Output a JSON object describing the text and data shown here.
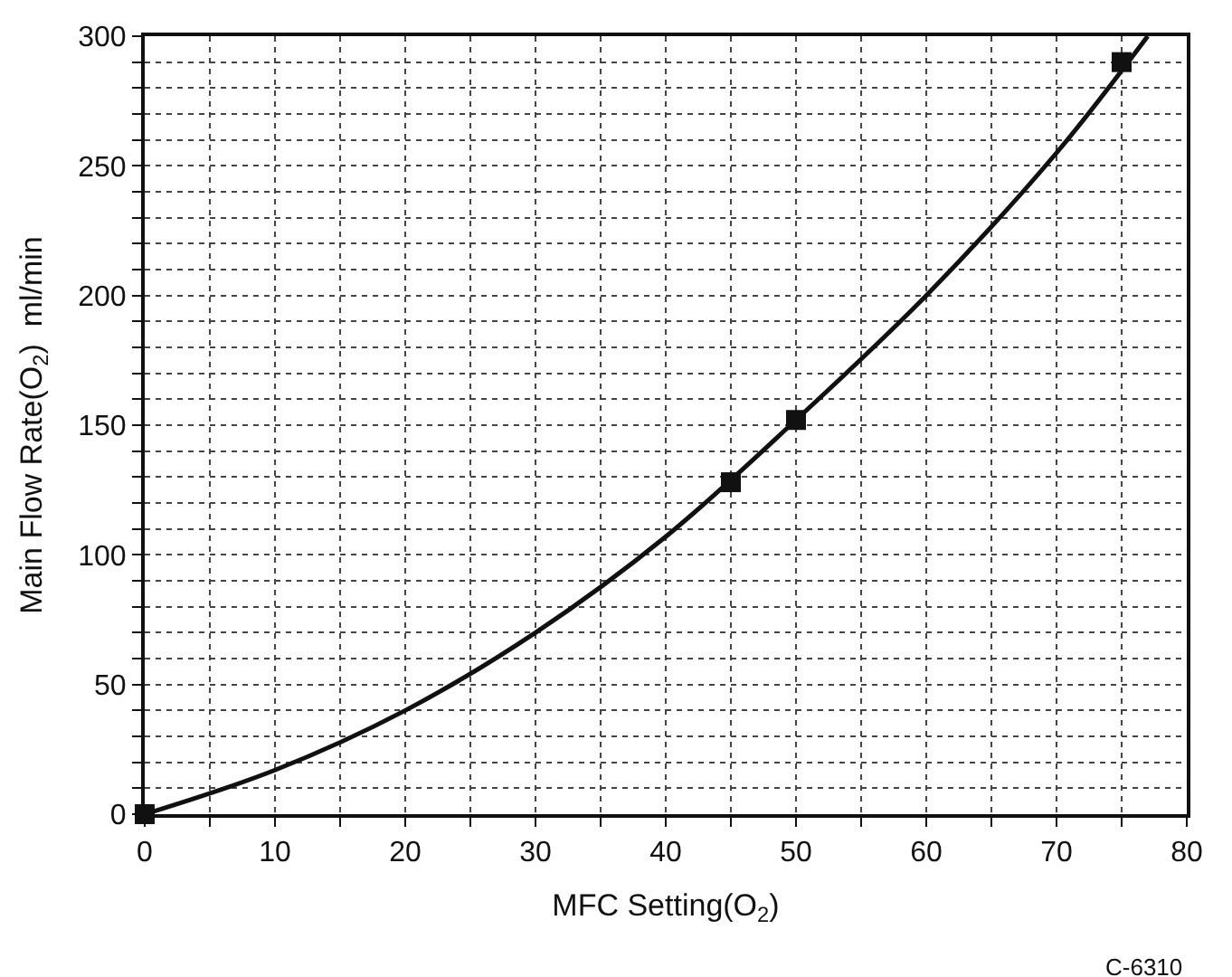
{
  "chart_data": {
    "type": "scatter",
    "xlabel": "MFC Setting(O$_{2}$)",
    "ylabel": "Main Flow Rate(O$_{2}$)  ml/min",
    "xlim": [
      0,
      80
    ],
    "ylim": [
      0,
      300
    ],
    "xticks": [
      0,
      {
        "value": 5,
        "label": null
      },
      10,
      {
        "value": 15,
        "label": null
      },
      20,
      {
        "value": 25,
        "label": null
      },
      30,
      {
        "value": 35,
        "label": null
      },
      40,
      {
        "value": 45,
        "label": null
      },
      50,
      {
        "value": 55,
        "label": null
      },
      60,
      {
        "value": 65,
        "label": null
      },
      70,
      {
        "value": 75,
        "label": null
      },
      80
    ],
    "yticks": [
      0,
      {
        "value": 10,
        "label": null
      },
      {
        "value": 20,
        "label": null
      },
      {
        "value": 30,
        "label": null
      },
      {
        "value": 40,
        "label": null
      },
      50,
      {
        "value": 60,
        "label": null
      },
      {
        "value": 70,
        "label": null
      },
      {
        "value": 80,
        "label": null
      },
      {
        "value": 90,
        "label": null
      },
      100,
      {
        "value": 110,
        "label": null
      },
      {
        "value": 120,
        "label": null
      },
      {
        "value": 130,
        "label": null
      },
      {
        "value": 140,
        "label": null
      },
      150,
      {
        "value": 160,
        "label": null
      },
      {
        "value": 170,
        "label": null
      },
      {
        "value": 180,
        "label": null
      },
      {
        "value": 190,
        "label": null
      },
      200,
      {
        "value": 210,
        "label": null
      },
      {
        "value": 220,
        "label": null
      },
      {
        "value": 230,
        "label": null
      },
      {
        "value": 240,
        "label": null
      },
      250,
      {
        "value": 260,
        "label": null
      },
      {
        "value": 270,
        "label": null
      },
      {
        "value": 280,
        "label": null
      },
      {
        "value": 290,
        "label": null
      },
      300
    ],
    "grid": true,
    "series": [
      {
        "type": "line",
        "color": "#111111",
        "marker": "none",
        "x": [
          0,
          10,
          20,
          30,
          40,
          50,
          60,
          70,
          77
        ],
        "values": [
          0,
          17,
          40,
          70,
          107,
          152,
          200,
          255,
          300
        ]
      },
      {
        "color": "#111111",
        "marker": "square",
        "x": [
          0,
          45,
          50,
          75
        ],
        "values": [
          0,
          128,
          152,
          290
        ]
      }
    ],
    "annotations": [
      "C-6310"
    ]
  }
}
